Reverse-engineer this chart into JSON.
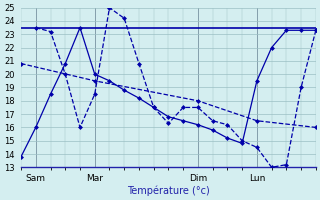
{
  "xlabel": "Température (°c)",
  "background_color": "#d4eef0",
  "grid_color": "#9bbfc4",
  "line_color": "#0000aa",
  "ylim": [
    13,
    25
  ],
  "yticks": [
    13,
    14,
    15,
    16,
    17,
    18,
    19,
    20,
    21,
    22,
    23,
    24,
    25
  ],
  "xlim": [
    0,
    20
  ],
  "day_labels": [
    "Sam",
    "Mar",
    "Dim",
    "Lun"
  ],
  "day_positions": [
    1,
    5,
    12,
    16
  ],
  "vline_color": "#555577",
  "series": [
    {
      "x": [
        0,
        1,
        2,
        3,
        4,
        5,
        6,
        7,
        8,
        9,
        10,
        11,
        12,
        13,
        14,
        15,
        16,
        17,
        18,
        19,
        20
      ],
      "y": [
        23.5,
        23.5,
        23.5,
        23.5,
        23.5,
        23.5,
        23.5,
        23.5,
        23.5,
        23.5,
        23.5,
        23.5,
        23.5,
        23.5,
        23.5,
        23.5,
        23.5,
        23.5,
        23.5,
        23.5,
        23.5
      ],
      "style": "solid",
      "markers": false
    },
    {
      "x": [
        0,
        5,
        12,
        16,
        20
      ],
      "y": [
        20.8,
        19.5,
        18.0,
        16.5,
        16.0
      ],
      "style": "dashed",
      "markers": true
    },
    {
      "x": [
        1,
        2,
        3,
        4,
        5,
        6,
        7,
        8,
        9,
        10,
        11,
        12,
        13,
        14,
        15,
        16,
        17,
        18,
        19,
        20
      ],
      "y": [
        23.5,
        23.2,
        20.0,
        16.0,
        18.5,
        25.0,
        24.2,
        20.8,
        17.5,
        16.3,
        17.5,
        17.5,
        16.5,
        16.2,
        15.0,
        14.5,
        13.0,
        13.2,
        19.0,
        23.3
      ],
      "style": "dashed",
      "markers": true
    },
    {
      "x": [
        0,
        1,
        2,
        3,
        4,
        5,
        6,
        7,
        8,
        9,
        10,
        11,
        12,
        13,
        14,
        15,
        16,
        17,
        18,
        19,
        20
      ],
      "y": [
        13.8,
        16.0,
        18.5,
        20.8,
        23.5,
        20.0,
        19.5,
        18.8,
        18.2,
        17.5,
        16.8,
        16.5,
        16.2,
        15.8,
        15.2,
        14.8,
        19.5,
        22.0,
        23.3,
        23.3,
        23.3
      ],
      "style": "solid",
      "markers": true
    }
  ]
}
